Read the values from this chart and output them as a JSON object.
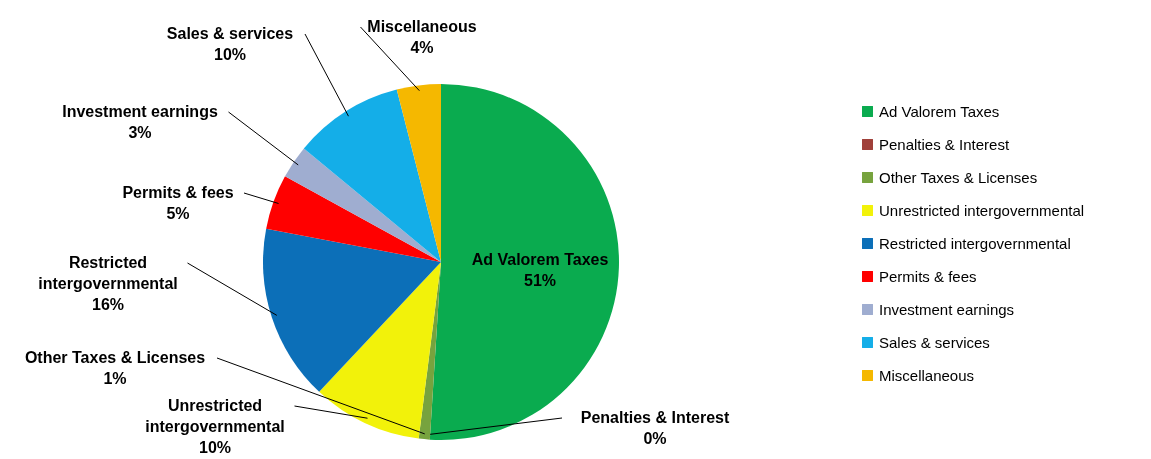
{
  "chart_data": {
    "type": "pie",
    "categories": [
      "Ad Valorem Taxes",
      "Penalties & Interest",
      "Other Taxes & Licenses",
      "Unrestricted intergovernmental",
      "Restricted intergovernmental",
      "Permits & fees",
      "Investment earnings",
      "Sales & services",
      "Miscellaneous"
    ],
    "values": [
      51,
      0,
      1,
      10,
      16,
      5,
      3,
      10,
      4
    ],
    "value_labels": [
      "51%",
      "0%",
      "1%",
      "10%",
      "16%",
      "5%",
      "3%",
      "10%",
      "4%"
    ],
    "colors": [
      "#0aab4f",
      "#a0403a",
      "#77a33e",
      "#f2f20a",
      "#0c6fb8",
      "#ff0000",
      "#9fadd0",
      "#14aee8",
      "#f5b800"
    ],
    "legend": "right"
  }
}
